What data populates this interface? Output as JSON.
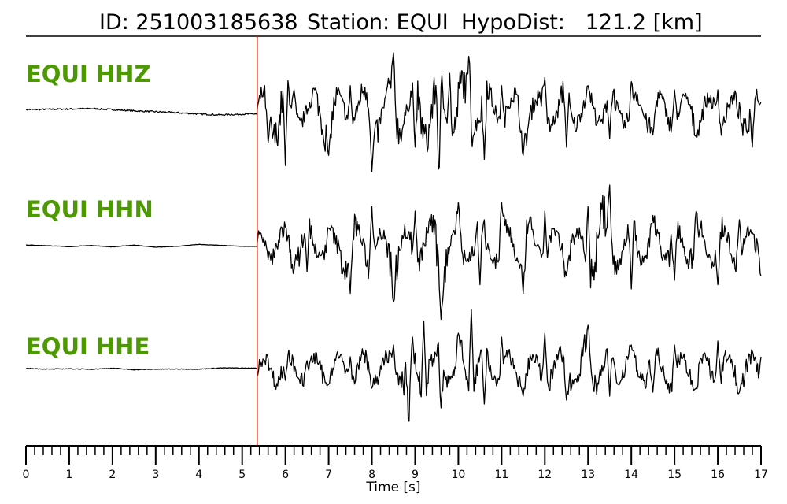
{
  "chart_data": {
    "type": "line",
    "title": {
      "id_label": "ID: 251003185638",
      "station_label": "Station: EQUI",
      "dist_label": "HypoDist:   121.2 [km]"
    },
    "xlabel": "Time [s]",
    "xlim": [
      0,
      17
    ],
    "major_ticks": [
      0,
      1,
      2,
      3,
      4,
      5,
      6,
      7,
      8,
      9,
      10,
      11,
      12,
      13,
      14,
      15,
      16,
      17
    ],
    "minor_tick_step": 0.2,
    "pick_time": 5.35,
    "pick_color": "#e8261c",
    "channel_color": "#4c9a00",
    "trace_color": "#000000",
    "series": [
      {
        "name": "EQUI HHZ",
        "pre_event": [
          [
            0,
            0.05
          ],
          [
            0.5,
            0.08
          ],
          [
            1,
            0.1
          ],
          [
            1.5,
            0.14
          ],
          [
            2,
            0.05
          ],
          [
            2.5,
            -0.05
          ],
          [
            3,
            -0.12
          ],
          [
            3.5,
            -0.2
          ],
          [
            4,
            -0.3
          ],
          [
            4.5,
            -0.38
          ],
          [
            5,
            -0.32
          ],
          [
            5.35,
            -0.3
          ]
        ],
        "peaks": [
          [
            5.6,
            -0.8
          ],
          [
            6.0,
            -1.35
          ],
          [
            6.2,
            0.5
          ],
          [
            7.0,
            -1.1
          ],
          [
            7.5,
            0.6
          ],
          [
            8.0,
            -1.5
          ],
          [
            8.5,
            1.4
          ],
          [
            9.0,
            -0.9
          ],
          [
            9.55,
            -1.8
          ],
          [
            9.8,
            0.9
          ],
          [
            10.25,
            1.5
          ],
          [
            10.6,
            -1.2
          ],
          [
            11.0,
            0.6
          ],
          [
            11.5,
            -1.1
          ],
          [
            12.0,
            0.8
          ],
          [
            12.5,
            -0.9
          ],
          [
            13.0,
            0.6
          ],
          [
            13.5,
            -0.7
          ],
          [
            14.0,
            0.7
          ],
          [
            14.5,
            -0.6
          ],
          [
            15.0,
            0.5
          ],
          [
            15.5,
            -0.6
          ],
          [
            16.0,
            0.5
          ],
          [
            16.8,
            -0.9
          ],
          [
            17.0,
            0.2
          ]
        ],
        "noise": 0.018
      },
      {
        "name": "EQUI HHN",
        "pre_event": [
          [
            0,
            0.05
          ],
          [
            0.5,
            0.0
          ],
          [
            1,
            -0.08
          ],
          [
            1.5,
            0.02
          ],
          [
            2,
            -0.1
          ],
          [
            2.5,
            0.05
          ],
          [
            3,
            -0.12
          ],
          [
            3.5,
            -0.05
          ],
          [
            4,
            0.1
          ],
          [
            4.5,
            0.02
          ],
          [
            5,
            -0.05
          ],
          [
            5.35,
            -0.05
          ]
        ],
        "peaks": [
          [
            6.5,
            -0.6
          ],
          [
            7.0,
            0.4
          ],
          [
            7.5,
            -1.1
          ],
          [
            8.0,
            0.9
          ],
          [
            8.5,
            -1.3
          ],
          [
            9.0,
            0.8
          ],
          [
            9.6,
            -1.7
          ],
          [
            10.0,
            1.0
          ],
          [
            10.5,
            -0.9
          ],
          [
            11.0,
            1.0
          ],
          [
            11.5,
            -1.1
          ],
          [
            12.0,
            0.8
          ],
          [
            12.5,
            -0.7
          ],
          [
            13.0,
            0.9
          ],
          [
            13.5,
            1.4
          ],
          [
            14.0,
            -1.0
          ],
          [
            14.5,
            0.7
          ],
          [
            15.0,
            -0.8
          ],
          [
            15.5,
            0.8
          ],
          [
            16.0,
            -0.9
          ],
          [
            16.5,
            0.6
          ],
          [
            17.0,
            -0.7
          ]
        ],
        "noise": 0.004
      },
      {
        "name": "EQUI HHE",
        "pre_event": [
          [
            0,
            0.02
          ],
          [
            0.5,
            -0.05
          ],
          [
            1,
            -0.02
          ],
          [
            1.5,
            -0.06
          ],
          [
            2,
            0.03
          ],
          [
            2.5,
            -0.1
          ],
          [
            3,
            -0.05
          ],
          [
            3.5,
            -0.04
          ],
          [
            4,
            -0.05
          ],
          [
            4.5,
            0.05
          ],
          [
            5,
            0.04
          ],
          [
            5.35,
            0.03
          ]
        ],
        "peaks": [
          [
            6.0,
            -0.3
          ],
          [
            6.5,
            0.2
          ],
          [
            7.0,
            -0.4
          ],
          [
            7.5,
            0.3
          ],
          [
            8.0,
            -0.5
          ],
          [
            8.5,
            0.6
          ],
          [
            8.85,
            -1.7
          ],
          [
            9.2,
            1.2
          ],
          [
            9.6,
            -1.0
          ],
          [
            10.0,
            0.9
          ],
          [
            10.3,
            1.5
          ],
          [
            10.6,
            -0.9
          ],
          [
            11.0,
            0.8
          ],
          [
            11.5,
            -0.7
          ],
          [
            12.0,
            0.9
          ],
          [
            12.5,
            -0.8
          ],
          [
            13.0,
            1.1
          ],
          [
            13.5,
            -0.7
          ],
          [
            14.0,
            0.6
          ],
          [
            14.5,
            -0.6
          ],
          [
            15.0,
            0.6
          ],
          [
            15.5,
            -0.5
          ],
          [
            16.0,
            0.7
          ],
          [
            16.5,
            -0.6
          ],
          [
            17.0,
            0.3
          ]
        ],
        "noise": 0.008
      }
    ]
  }
}
